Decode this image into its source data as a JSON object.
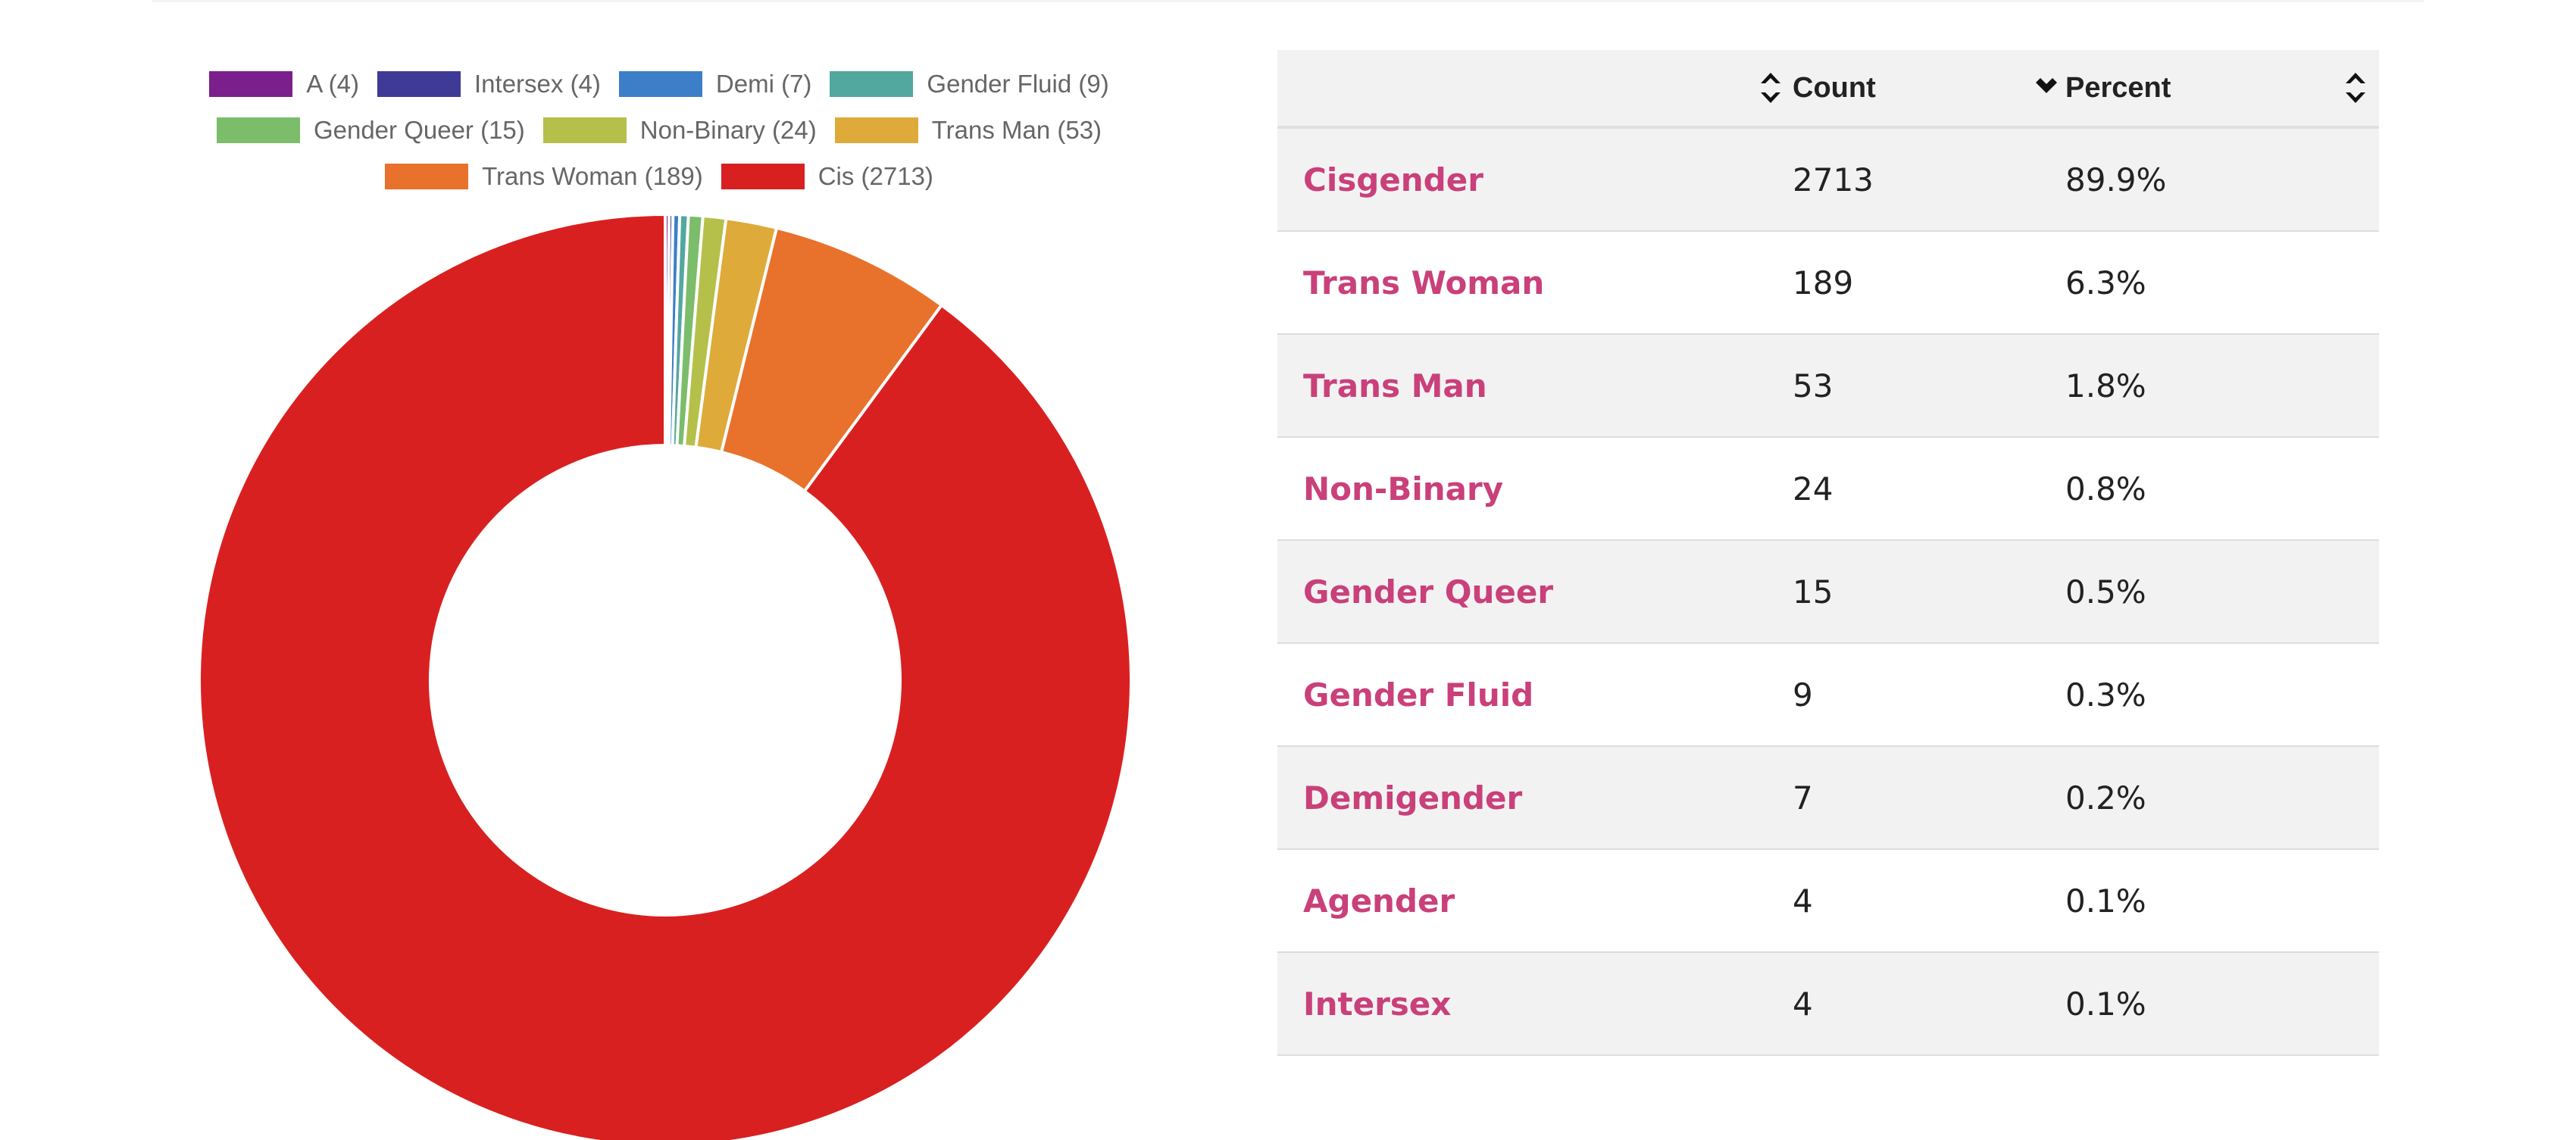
{
  "chart_data": {
    "type": "pie",
    "style": "donut",
    "legend_position": "top",
    "categories": [
      "A (4)",
      "Intersex (4)",
      "Demi (7)",
      "Gender Fluid (9)",
      "Gender Queer (15)",
      "Non-Binary (24)",
      "Trans Man (53)",
      "Trans Woman (189)",
      "Cis (2713)"
    ],
    "values": [
      4,
      4,
      7,
      9,
      15,
      24,
      53,
      189,
      2713
    ],
    "colors": [
      "#7b1f8c",
      "#3f3a96",
      "#3d7ec8",
      "#52a89e",
      "#7bbd6a",
      "#b5c04a",
      "#deaa3a",
      "#e8712c",
      "#d92020"
    ]
  },
  "legend_rows": [
    [
      0,
      1,
      2,
      3
    ],
    [
      4,
      5,
      6
    ],
    [
      7,
      8
    ]
  ],
  "table": {
    "headers": {
      "name": "",
      "count": "Count",
      "percent": "Percent"
    },
    "sort_icons": {
      "name": "sort-both-icon",
      "count": "sort-desc-icon",
      "percent": "sort-both-icon"
    },
    "rows": [
      {
        "name": "Cisgender",
        "count": "2713",
        "percent": "89.9%"
      },
      {
        "name": "Trans Woman",
        "count": "189",
        "percent": "6.3%"
      },
      {
        "name": "Trans Man",
        "count": "53",
        "percent": "1.8%"
      },
      {
        "name": "Non-Binary",
        "count": "24",
        "percent": "0.8%"
      },
      {
        "name": "Gender Queer",
        "count": "15",
        "percent": "0.5%"
      },
      {
        "name": "Gender Fluid",
        "count": "9",
        "percent": "0.3%"
      },
      {
        "name": "Demigender",
        "count": "7",
        "percent": "0.2%"
      },
      {
        "name": "Agender",
        "count": "4",
        "percent": "0.1%"
      },
      {
        "name": "Intersex",
        "count": "4",
        "percent": "0.1%"
      }
    ]
  },
  "colors": {
    "link": "#c9407a",
    "header_bg": "#f2f2f2",
    "row_alt_bg": "#f2f2f2"
  }
}
